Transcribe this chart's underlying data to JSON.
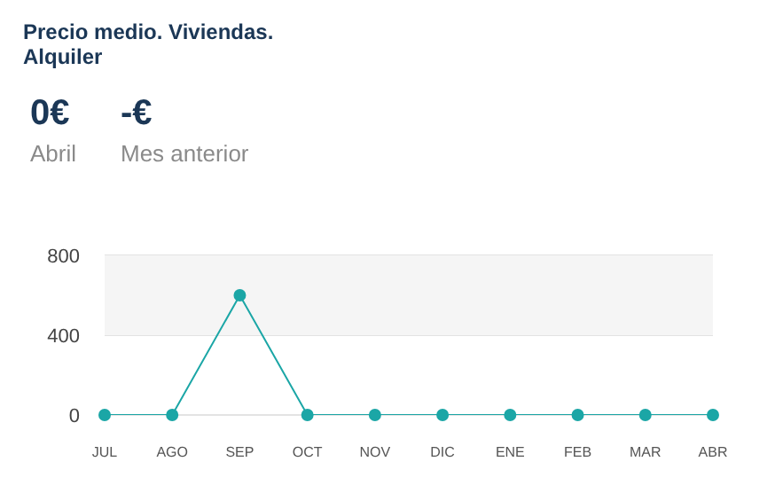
{
  "chart_data": {
    "type": "line",
    "title": "Precio medio. Viviendas. Alquiler",
    "annotations": [
      "0€",
      "Abril",
      "-€",
      "Mes anterior"
    ],
    "categories": [
      "JUL",
      "AGO",
      "SEP",
      "OCT",
      "NOV",
      "DIC",
      "ENE",
      "FEB",
      "MAR",
      "ABR"
    ],
    "series": [
      {
        "color": "#1ba6a6",
        "values": [
          0,
          0,
          600,
          0,
          0,
          0,
          0,
          0,
          0,
          0
        ]
      }
    ],
    "ylim": [
      0,
      800
    ],
    "yticks": [
      0,
      400,
      800
    ],
    "grid": "y",
    "marker": "circle",
    "legend": false,
    "bands": [
      {
        "axis": "y",
        "from": 400,
        "to": 800,
        "color": "#f5f5f5"
      }
    ]
  }
}
